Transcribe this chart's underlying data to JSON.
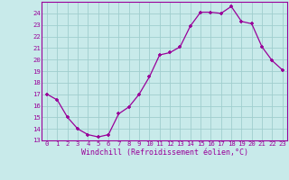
{
  "x": [
    0,
    1,
    2,
    3,
    4,
    5,
    6,
    7,
    8,
    9,
    10,
    11,
    12,
    13,
    14,
    15,
    16,
    17,
    18,
    19,
    20,
    21,
    22,
    23
  ],
  "y": [
    17,
    16.5,
    15,
    14,
    13.5,
    13.3,
    13.5,
    15.3,
    15.9,
    17.0,
    18.5,
    20.4,
    20.6,
    21.1,
    22.9,
    24.1,
    24.1,
    24.0,
    24.6,
    23.3,
    23.1,
    21.1,
    19.9,
    19.1
  ],
  "line_color": "#990099",
  "bg_color": "#c8eaea",
  "grid_color": "#a0cece",
  "xlabel": "Windchill (Refroidissement éolien,°C)",
  "ylim": [
    13,
    25
  ],
  "yticks": [
    13,
    14,
    15,
    16,
    17,
    18,
    19,
    20,
    21,
    22,
    23,
    24
  ],
  "xticks": [
    0,
    1,
    2,
    3,
    4,
    5,
    6,
    7,
    8,
    9,
    10,
    11,
    12,
    13,
    14,
    15,
    16,
    17,
    18,
    19,
    20,
    21,
    22,
    23
  ],
  "xlim": [
    -0.5,
    23.5
  ]
}
